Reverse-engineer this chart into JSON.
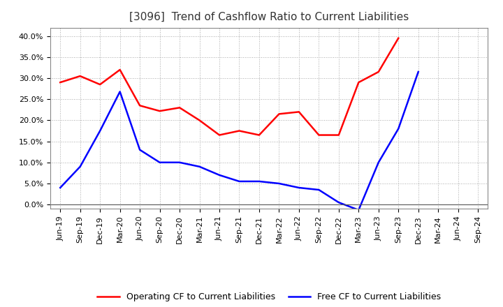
{
  "title": "[3096]  Trend of Cashflow Ratio to Current Liabilities",
  "x_labels": [
    "Jun-19",
    "Sep-19",
    "Dec-19",
    "Mar-20",
    "Jun-20",
    "Sep-20",
    "Dec-20",
    "Mar-21",
    "Jun-21",
    "Sep-21",
    "Dec-21",
    "Mar-22",
    "Jun-22",
    "Sep-22",
    "Dec-22",
    "Mar-23",
    "Jun-23",
    "Sep-23",
    "Dec-23",
    "Mar-24",
    "Jun-24",
    "Sep-24"
  ],
  "operating_cf": [
    0.29,
    0.305,
    0.285,
    0.32,
    0.235,
    0.222,
    0.23,
    0.2,
    0.165,
    0.175,
    0.165,
    0.215,
    0.22,
    0.165,
    0.165,
    0.29,
    0.315,
    0.395,
    null,
    null,
    null,
    null
  ],
  "free_cf": [
    0.04,
    0.09,
    0.175,
    0.268,
    0.13,
    0.1,
    0.1,
    0.09,
    0.07,
    0.055,
    0.055,
    0.05,
    0.04,
    0.035,
    0.005,
    -0.013,
    0.1,
    0.18,
    0.315,
    null,
    null,
    null
  ],
  "ylim": [
    -0.01,
    0.42
  ],
  "yticks": [
    0.0,
    0.05,
    0.1,
    0.15,
    0.2,
    0.25,
    0.3,
    0.35,
    0.4
  ],
  "operating_color": "#ff0000",
  "free_color": "#0000ff",
  "background_color": "#ffffff",
  "grid_color": "#aaaaaa",
  "title_fontsize": 11,
  "tick_fontsize": 8,
  "legend_labels": [
    "Operating CF to Current Liabilities",
    "Free CF to Current Liabilities"
  ]
}
